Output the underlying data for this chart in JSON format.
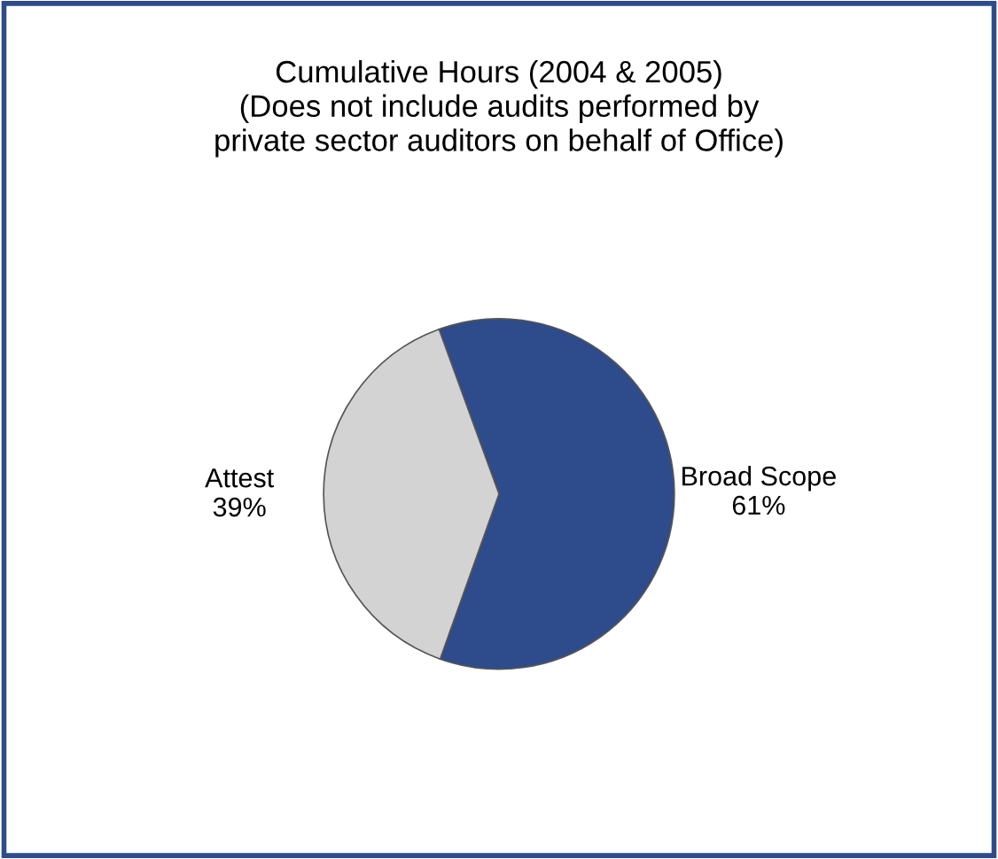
{
  "chart_data": {
    "type": "pie",
    "title": "Cumulative Hours (2004 & 2005)\n(Does not include audits performed by\nprivate sector auditors on behalf of Office)",
    "categories": [
      "Broad Scope",
      "Attest"
    ],
    "values": [
      61,
      39
    ],
    "value_labels": [
      "61%",
      "39%"
    ],
    "colors": [
      "#2e4b8b",
      "#d3d3d3"
    ],
    "legend": false
  }
}
